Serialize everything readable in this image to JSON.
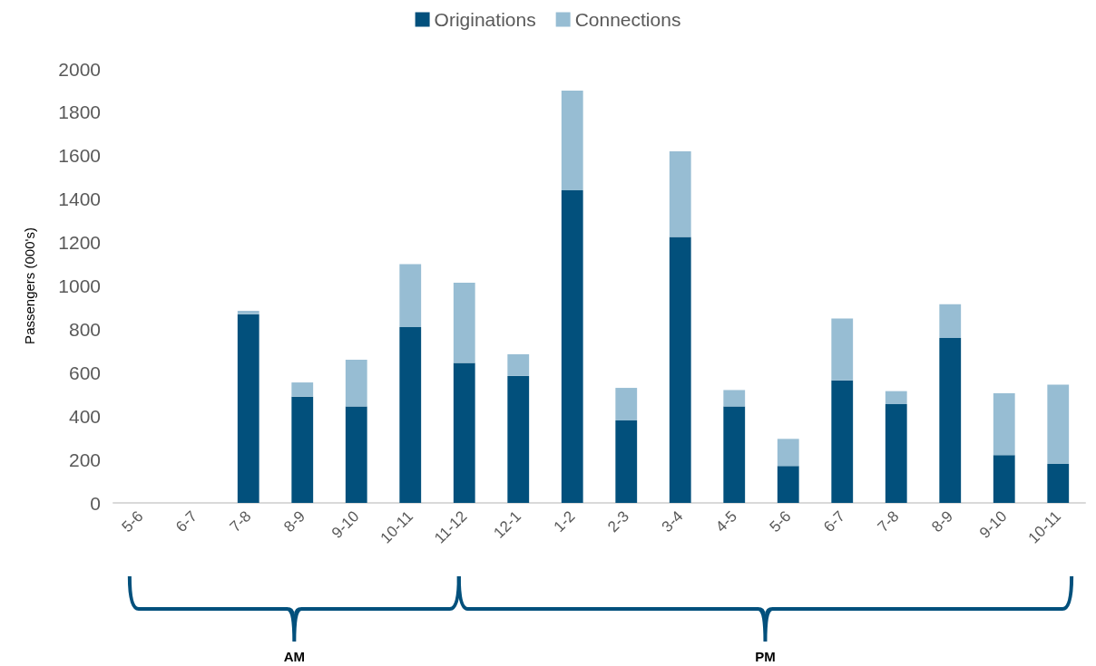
{
  "chart_data": {
    "type": "bar",
    "stacked": true,
    "ylabel": "Passengers (000's)",
    "categories": [
      "5-6",
      "6-7",
      "7-8",
      "8-9",
      "9-10",
      "10-11",
      "11-12",
      "12-1",
      "1-2",
      "2-3",
      "3-4",
      "4-5",
      "5-6",
      "6-7",
      "7-8",
      "8-9",
      "9-10",
      "10-11"
    ],
    "series": [
      {
        "name": "Originations",
        "color": "#02507c",
        "values": [
          0,
          0,
          870,
          490,
          445,
          810,
          645,
          585,
          1440,
          380,
          1225,
          445,
          170,
          565,
          455,
          760,
          220,
          180
        ]
      },
      {
        "name": "Connections",
        "color": "#97bdd3",
        "values": [
          0,
          0,
          15,
          65,
          215,
          290,
          370,
          100,
          460,
          150,
          395,
          75,
          125,
          285,
          60,
          155,
          285,
          365
        ]
      }
    ],
    "ylim": [
      0,
      2000
    ],
    "yticks": [
      0,
      200,
      400,
      600,
      800,
      1000,
      1200,
      1400,
      1600,
      1800,
      2000
    ],
    "grid": false,
    "legend": "top",
    "annotations": [
      "AM",
      "PM"
    ]
  }
}
